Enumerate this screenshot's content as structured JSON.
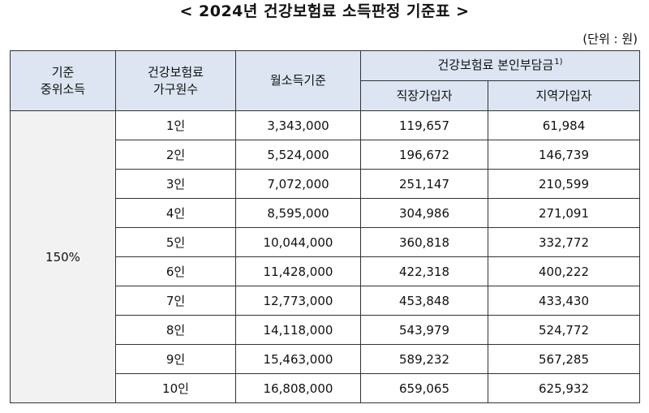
{
  "title": "< 2024년 건강보험료 소득판정 기준표 >",
  "unit": "(단위 : 원)",
  "headers": {
    "median_line1": "기준",
    "median_line2": "중위소득",
    "household_line1": "건강보험료",
    "household_line2": "가구원수",
    "monthly_income": "월소득기준",
    "premium_group": "건강보험료 본인부담금",
    "premium_note": "1)",
    "employee": "직장가입자",
    "regional": "지역가입자"
  },
  "median_value": "150%",
  "rows": [
    {
      "household": "1인",
      "income": "3,343,000",
      "employee": "119,657",
      "regional": "61,984"
    },
    {
      "household": "2인",
      "income": "5,524,000",
      "employee": "196,672",
      "regional": "146,739"
    },
    {
      "household": "3인",
      "income": "7,072,000",
      "employee": "251,147",
      "regional": "210,599"
    },
    {
      "household": "4인",
      "income": "8,595,000",
      "employee": "304,986",
      "regional": "271,091"
    },
    {
      "household": "5인",
      "income": "10,044,000",
      "employee": "360,818",
      "regional": "332,772"
    },
    {
      "household": "6인",
      "income": "11,428,000",
      "employee": "422,318",
      "regional": "400,222"
    },
    {
      "household": "7인",
      "income": "12,773,000",
      "employee": "453,848",
      "regional": "433,430"
    },
    {
      "household": "8인",
      "income": "14,118,000",
      "employee": "543,979",
      "regional": "524,772"
    },
    {
      "household": "9인",
      "income": "15,463,000",
      "employee": "589,232",
      "regional": "567,285"
    },
    {
      "household": "10인",
      "income": "16,808,000",
      "employee": "659,065",
      "regional": "625,932"
    }
  ]
}
